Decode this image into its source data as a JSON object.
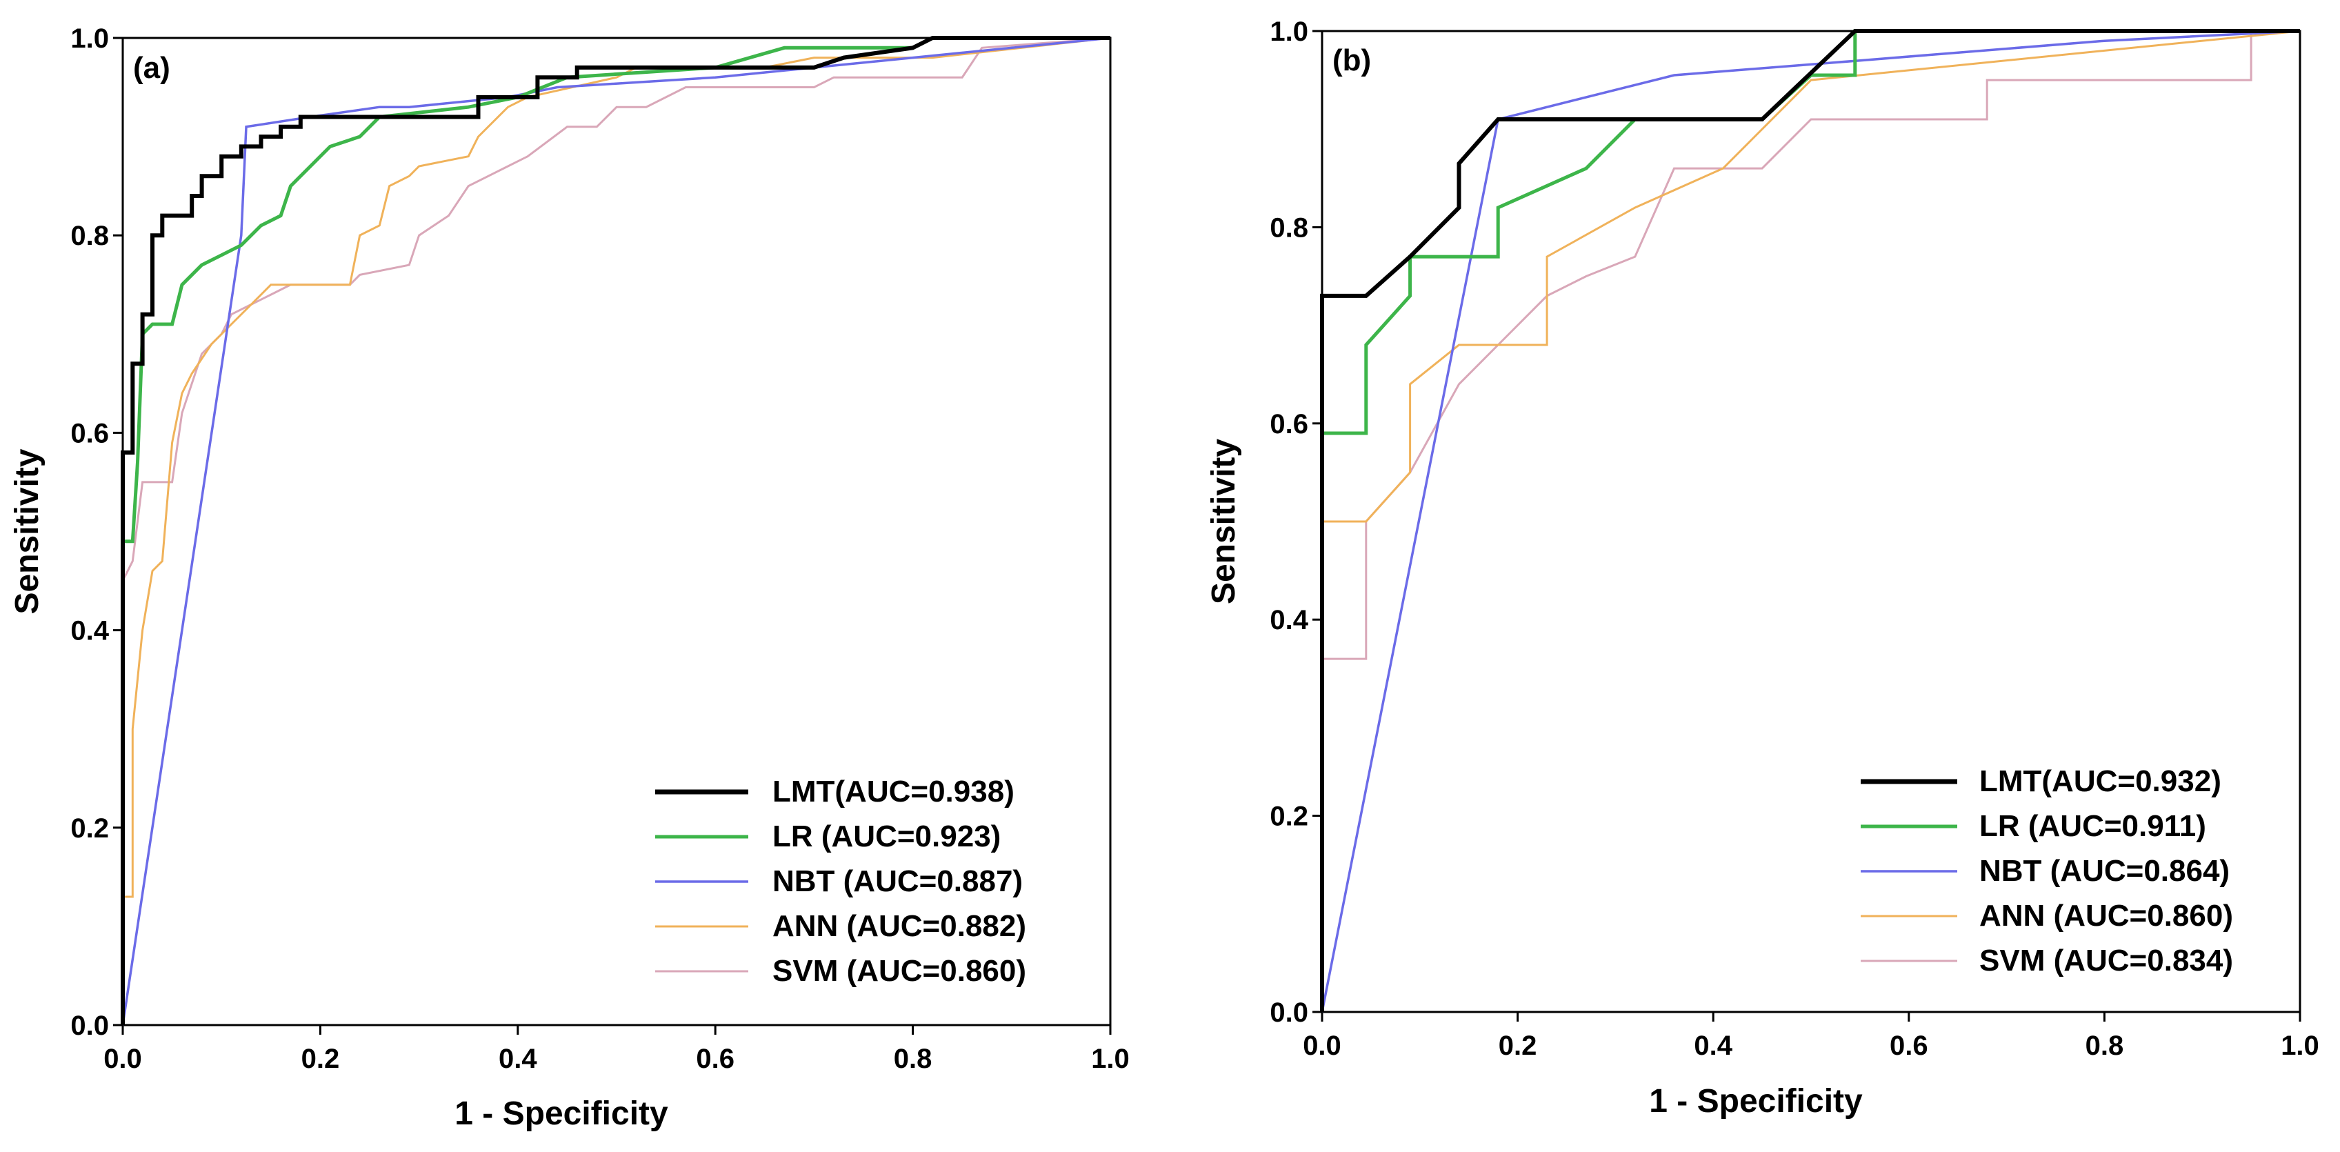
{
  "chart_data": [
    {
      "type": "line",
      "panel_label": "(a)",
      "xlabel": "1 - Specificity",
      "ylabel": "Sensitivity",
      "xlim": [
        0,
        1
      ],
      "ylim": [
        0,
        1
      ],
      "x_ticks": [
        "0.0",
        "0.2",
        "0.4",
        "0.6",
        "0.8",
        "1.0"
      ],
      "y_ticks": [
        "0.0",
        "0.2",
        "0.4",
        "0.6",
        "0.8",
        "1.0"
      ],
      "legend_position": "bottom-right",
      "series": [
        {
          "name": "SVM (AUC=0.860)",
          "color": "#d9a7b8",
          "points": [
            [
              0,
              0
            ],
            [
              0,
              0.45
            ],
            [
              0.01,
              0.47
            ],
            [
              0.02,
              0.55
            ],
            [
              0.05,
              0.55
            ],
            [
              0.06,
              0.62
            ],
            [
              0.08,
              0.68
            ],
            [
              0.1,
              0.7
            ],
            [
              0.11,
              0.72
            ],
            [
              0.13,
              0.73
            ],
            [
              0.15,
              0.74
            ],
            [
              0.17,
              0.75
            ],
            [
              0.23,
              0.75
            ],
            [
              0.24,
              0.76
            ],
            [
              0.29,
              0.77
            ],
            [
              0.3,
              0.8
            ],
            [
              0.33,
              0.82
            ],
            [
              0.35,
              0.85
            ],
            [
              0.39,
              0.87
            ],
            [
              0.41,
              0.88
            ],
            [
              0.45,
              0.91
            ],
            [
              0.48,
              0.91
            ],
            [
              0.5,
              0.93
            ],
            [
              0.53,
              0.93
            ],
            [
              0.57,
              0.95
            ],
            [
              0.7,
              0.95
            ],
            [
              0.72,
              0.96
            ],
            [
              0.85,
              0.96
            ],
            [
              0.87,
              0.99
            ],
            [
              1,
              1
            ]
          ]
        },
        {
          "name": "ANN (AUC=0.882)",
          "color": "#f0b25a",
          "points": [
            [
              0,
              0
            ],
            [
              0,
              0.13
            ],
            [
              0.01,
              0.13
            ],
            [
              0.01,
              0.3
            ],
            [
              0.02,
              0.4
            ],
            [
              0.03,
              0.46
            ],
            [
              0.04,
              0.47
            ],
            [
              0.05,
              0.59
            ],
            [
              0.06,
              0.64
            ],
            [
              0.07,
              0.66
            ],
            [
              0.09,
              0.69
            ],
            [
              0.11,
              0.71
            ],
            [
              0.13,
              0.73
            ],
            [
              0.15,
              0.75
            ],
            [
              0.23,
              0.75
            ],
            [
              0.24,
              0.8
            ],
            [
              0.26,
              0.81
            ],
            [
              0.27,
              0.85
            ],
            [
              0.29,
              0.86
            ],
            [
              0.3,
              0.87
            ],
            [
              0.35,
              0.88
            ],
            [
              0.36,
              0.9
            ],
            [
              0.39,
              0.93
            ],
            [
              0.41,
              0.94
            ],
            [
              0.5,
              0.96
            ],
            [
              0.52,
              0.97
            ],
            [
              0.65,
              0.97
            ],
            [
              0.7,
              0.98
            ],
            [
              0.82,
              0.98
            ],
            [
              1,
              1
            ]
          ]
        },
        {
          "name": "NBT (AUC=0.887)",
          "color": "#6b6be8",
          "points": [
            [
              0,
              0
            ],
            [
              0.12,
              0.8
            ],
            [
              0.125,
              0.91
            ],
            [
              0.19,
              0.92
            ],
            [
              0.26,
              0.93
            ],
            [
              0.29,
              0.93
            ],
            [
              0.39,
              0.94
            ],
            [
              0.44,
              0.95
            ],
            [
              0.6,
              0.96
            ],
            [
              0.8,
              0.98
            ],
            [
              1,
              1
            ]
          ]
        },
        {
          "name": "LR (AUC=0.923)",
          "color": "#3db54a",
          "points": [
            [
              0,
              0
            ],
            [
              0,
              0.49
            ],
            [
              0.01,
              0.49
            ],
            [
              0.015,
              0.57
            ],
            [
              0.02,
              0.7
            ],
            [
              0.03,
              0.71
            ],
            [
              0.05,
              0.71
            ],
            [
              0.06,
              0.75
            ],
            [
              0.08,
              0.77
            ],
            [
              0.1,
              0.78
            ],
            [
              0.12,
              0.79
            ],
            [
              0.14,
              0.81
            ],
            [
              0.16,
              0.82
            ],
            [
              0.17,
              0.85
            ],
            [
              0.19,
              0.87
            ],
            [
              0.21,
              0.89
            ],
            [
              0.24,
              0.9
            ],
            [
              0.26,
              0.92
            ],
            [
              0.35,
              0.93
            ],
            [
              0.4,
              0.94
            ],
            [
              0.45,
              0.96
            ],
            [
              0.6,
              0.97
            ],
            [
              0.67,
              0.99
            ],
            [
              0.8,
              0.99
            ],
            [
              0.82,
              1.0
            ],
            [
              1,
              1
            ]
          ]
        },
        {
          "name": "LMT(AUC=0.938)",
          "color": "#000000",
          "points": [
            [
              0,
              0
            ],
            [
              0,
              0.58
            ],
            [
              0.01,
              0.58
            ],
            [
              0.01,
              0.67
            ],
            [
              0.02,
              0.67
            ],
            [
              0.02,
              0.72
            ],
            [
              0.03,
              0.72
            ],
            [
              0.03,
              0.8
            ],
            [
              0.04,
              0.8
            ],
            [
              0.04,
              0.82
            ],
            [
              0.07,
              0.82
            ],
            [
              0.07,
              0.84
            ],
            [
              0.08,
              0.84
            ],
            [
              0.08,
              0.86
            ],
            [
              0.1,
              0.86
            ],
            [
              0.1,
              0.88
            ],
            [
              0.12,
              0.88
            ],
            [
              0.12,
              0.89
            ],
            [
              0.14,
              0.89
            ],
            [
              0.14,
              0.9
            ],
            [
              0.16,
              0.9
            ],
            [
              0.16,
              0.91
            ],
            [
              0.18,
              0.91
            ],
            [
              0.18,
              0.92
            ],
            [
              0.36,
              0.92
            ],
            [
              0.36,
              0.94
            ],
            [
              0.42,
              0.94
            ],
            [
              0.42,
              0.96
            ],
            [
              0.46,
              0.96
            ],
            [
              0.46,
              0.97
            ],
            [
              0.7,
              0.97
            ],
            [
              0.73,
              0.98
            ],
            [
              0.8,
              0.99
            ],
            [
              0.82,
              1.0
            ],
            [
              1,
              1
            ]
          ]
        }
      ]
    },
    {
      "type": "line",
      "panel_label": "(b)",
      "xlabel": "1 - Specificity",
      "ylabel": "Sensitivity",
      "xlim": [
        0,
        1
      ],
      "ylim": [
        0,
        1
      ],
      "x_ticks": [
        "0.0",
        "0.2",
        "0.4",
        "0.6",
        "0.8",
        "1.0"
      ],
      "y_ticks": [
        "0.0",
        "0.2",
        "0.4",
        "0.6",
        "0.8",
        "1.0"
      ],
      "legend_position": "bottom-right",
      "series": [
        {
          "name": "SVM (AUC=0.834)",
          "color": "#d9a7b8",
          "points": [
            [
              0,
              0
            ],
            [
              0,
              0.36
            ],
            [
              0.045,
              0.36
            ],
            [
              0.045,
              0.5
            ],
            [
              0.09,
              0.55
            ],
            [
              0.14,
              0.64
            ],
            [
              0.18,
              0.68
            ],
            [
              0.23,
              0.73
            ],
            [
              0.27,
              0.75
            ],
            [
              0.32,
              0.77
            ],
            [
              0.36,
              0.86
            ],
            [
              0.45,
              0.86
            ],
            [
              0.5,
              0.91
            ],
            [
              0.68,
              0.91
            ],
            [
              0.68,
              0.95
            ],
            [
              0.95,
              0.95
            ],
            [
              0.95,
              1.0
            ],
            [
              1,
              1
            ]
          ]
        },
        {
          "name": "ANN (AUC=0.860)",
          "color": "#f0b25a",
          "points": [
            [
              0,
              0
            ],
            [
              0,
              0.5
            ],
            [
              0.045,
              0.5
            ],
            [
              0.09,
              0.55
            ],
            [
              0.09,
              0.64
            ],
            [
              0.14,
              0.68
            ],
            [
              0.23,
              0.68
            ],
            [
              0.23,
              0.77
            ],
            [
              0.32,
              0.82
            ],
            [
              0.41,
              0.86
            ],
            [
              0.5,
              0.95
            ],
            [
              0.6,
              0.96
            ],
            [
              0.8,
              0.98
            ],
            [
              1,
              1
            ]
          ]
        },
        {
          "name": "NBT (AUC=0.864)",
          "color": "#6b6be8",
          "points": [
            [
              0,
              0
            ],
            [
              0.18,
              0.91
            ],
            [
              0.36,
              0.955
            ],
            [
              0.55,
              0.97
            ],
            [
              0.8,
              0.99
            ],
            [
              1,
              1
            ]
          ]
        },
        {
          "name": "LR (AUC=0.911)",
          "color": "#3db54a",
          "points": [
            [
              0,
              0
            ],
            [
              0,
              0.59
            ],
            [
              0.045,
              0.59
            ],
            [
              0.045,
              0.68
            ],
            [
              0.09,
              0.73
            ],
            [
              0.09,
              0.77
            ],
            [
              0.18,
              0.77
            ],
            [
              0.18,
              0.82
            ],
            [
              0.27,
              0.86
            ],
            [
              0.32,
              0.91
            ],
            [
              0.45,
              0.91
            ],
            [
              0.5,
              0.955
            ],
            [
              0.545,
              0.955
            ],
            [
              0.545,
              1.0
            ],
            [
              1,
              1
            ]
          ]
        },
        {
          "name": "LMT(AUC=0.932)",
          "color": "#000000",
          "points": [
            [
              0,
              0
            ],
            [
              0,
              0.73
            ],
            [
              0.045,
              0.73
            ],
            [
              0.09,
              0.77
            ],
            [
              0.14,
              0.82
            ],
            [
              0.14,
              0.865
            ],
            [
              0.18,
              0.91
            ],
            [
              0.45,
              0.91
            ],
            [
              0.545,
              1.0
            ],
            [
              1,
              1
            ]
          ]
        }
      ]
    }
  ]
}
